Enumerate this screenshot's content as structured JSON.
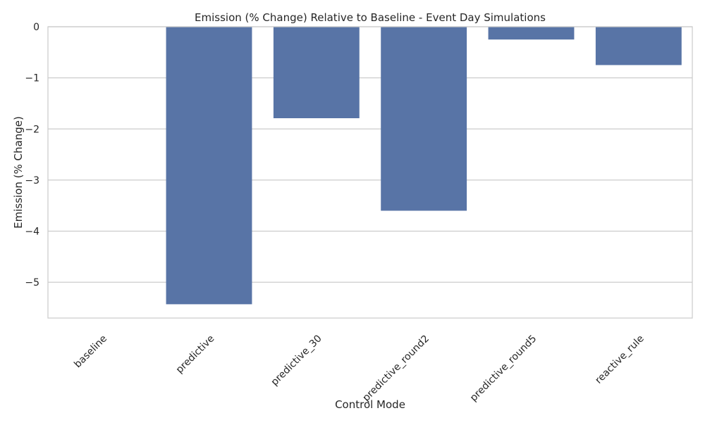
{
  "chart_data": {
    "type": "bar",
    "title": "Emission (% Change) Relative to Baseline - Event Day Simulations",
    "xlabel": "Control Mode",
    "ylabel": "Emission (% Change)",
    "categories": [
      "baseline",
      "predictive",
      "predictive_30",
      "predictive_round2",
      "predictive_round5",
      "reactive_rule"
    ],
    "values": [
      0,
      -5.43,
      -1.79,
      -3.6,
      -0.25,
      -0.75
    ],
    "ylim": [
      -5.7,
      0
    ],
    "yticks": [
      0,
      -1,
      -2,
      -3,
      -4,
      -5
    ],
    "ytick_labels": [
      "0",
      "−1",
      "−2",
      "−3",
      "−4",
      "−5"
    ],
    "grid": "horizontal",
    "colors": {
      "bar": "#5874a6",
      "grid": "#cccccc",
      "spine": "#cccccc",
      "text": "#262626"
    }
  }
}
